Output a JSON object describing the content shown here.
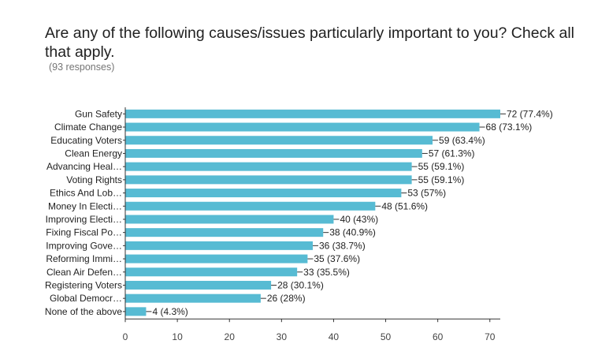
{
  "page": {
    "title": "Are any of the following causes/issues particularly important to you? Check all that apply.",
    "subtitle": "(93 responses)"
  },
  "chart_data": {
    "type": "bar",
    "orientation": "horizontal",
    "categories": [
      "Gun Safety",
      "Climate Change",
      "Educating Voters",
      "Clean Energy",
      "Advancing Heal…",
      "Voting Rights",
      "Ethics And Lob…",
      "Money In Electi…",
      "Improving Electi…",
      "Fixing Fiscal Po…",
      "Improving Gove…",
      "Reforming Immi…",
      "Clean Air Defen…",
      "Registering Voters",
      "Global Democr…",
      "None of the above"
    ],
    "values": [
      72,
      68,
      59,
      57,
      55,
      55,
      53,
      48,
      40,
      38,
      36,
      35,
      33,
      28,
      26,
      4
    ],
    "value_labels": [
      "72 (77.4%)",
      "68 (73.1%)",
      "59 (63.4%)",
      "57 (61.3%)",
      "55 (59.1%)",
      "55 (59.1%)",
      "53 (57%)",
      "48 (51.6%)",
      "40 (43%)",
      "38 (40.9%)",
      "36 (38.7%)",
      "35 (37.6%)",
      "33 (35.5%)",
      "28 (30.1%)",
      "26 (28%)",
      "4 (4.3%)"
    ],
    "xticks": [
      0,
      10,
      20,
      30,
      40,
      50,
      60,
      70
    ],
    "xlim": [
      0,
      72
    ],
    "bar_color": "#57bbd3",
    "axis_color": "#333333",
    "grid": false
  }
}
